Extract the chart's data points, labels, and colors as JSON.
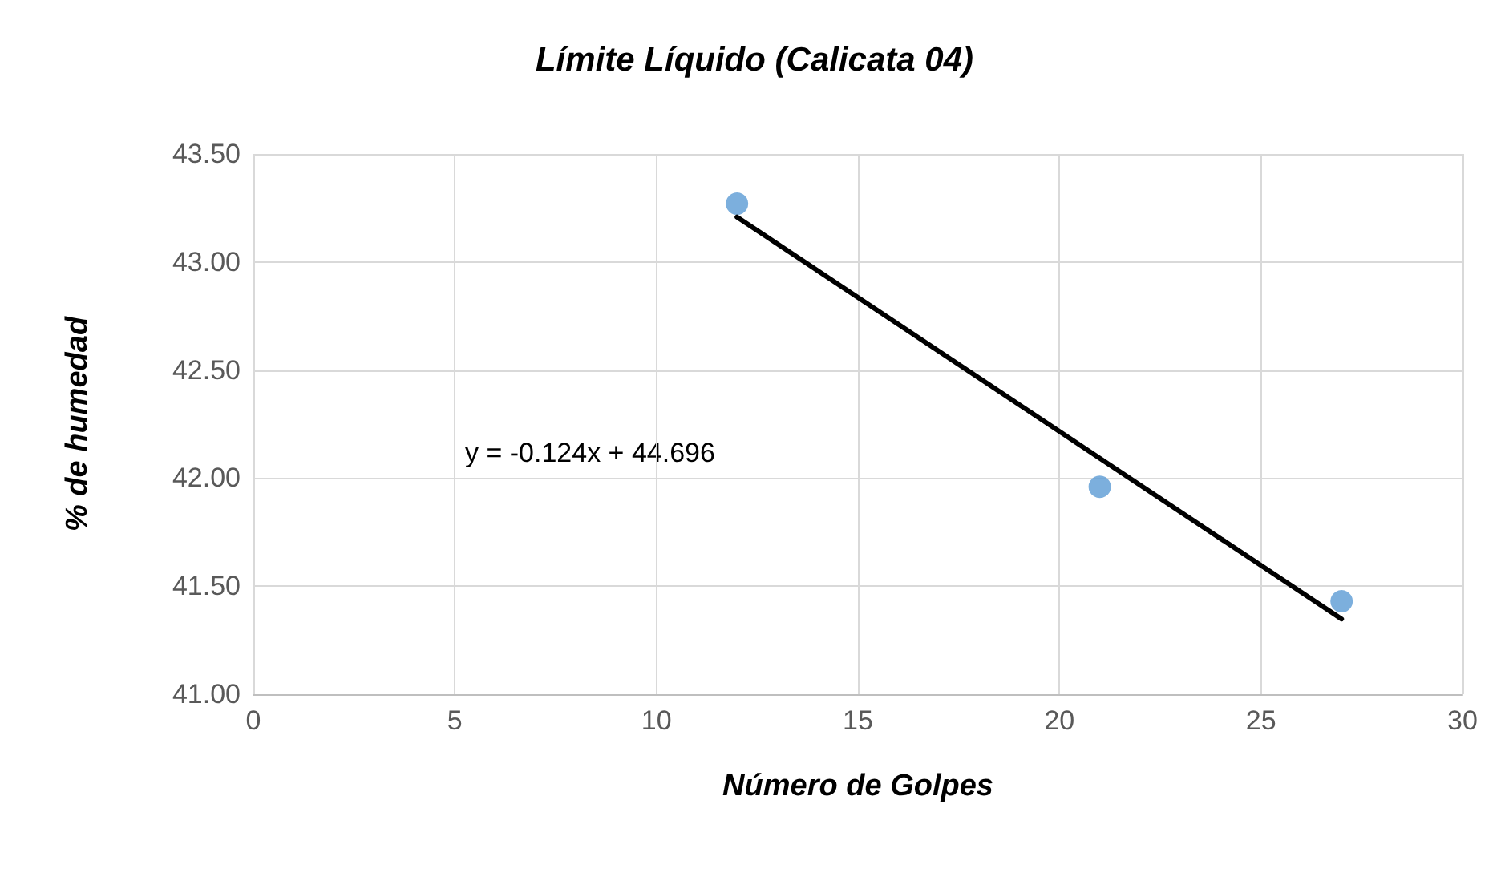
{
  "chart_data": {
    "type": "scatter",
    "title": "Límite Líquido (Calicata 04)",
    "xlabel": "Número de Golpes",
    "ylabel": "% de humedad",
    "series": [
      {
        "color": "#5b9bd5",
        "x": [
          12,
          21,
          27
        ],
        "values": [
          43.27,
          41.96,
          41.43
        ],
        "marker": "circle"
      },
      {
        "type": "line",
        "color": "#000000",
        "x": [
          12,
          27
        ],
        "values": [
          43.208,
          41.348
        ],
        "marker": "none"
      }
    ],
    "xlim": [
      0,
      30
    ],
    "xticks": [
      0,
      5,
      10,
      15,
      20,
      25,
      30
    ],
    "ylim": [
      41,
      43.5
    ],
    "yticks": [
      {
        "value": 41,
        "label": "41.00"
      },
      {
        "value": 41.5,
        "label": "41.50"
      },
      {
        "value": 42,
        "label": "42.00"
      },
      {
        "value": 42.5,
        "label": "42.50"
      },
      {
        "value": 43,
        "label": "43.00"
      },
      {
        "value": 43.5,
        "label": "43.50"
      }
    ],
    "grid": true,
    "annotations": [
      "y = -0.124x + 44.696"
    ]
  }
}
